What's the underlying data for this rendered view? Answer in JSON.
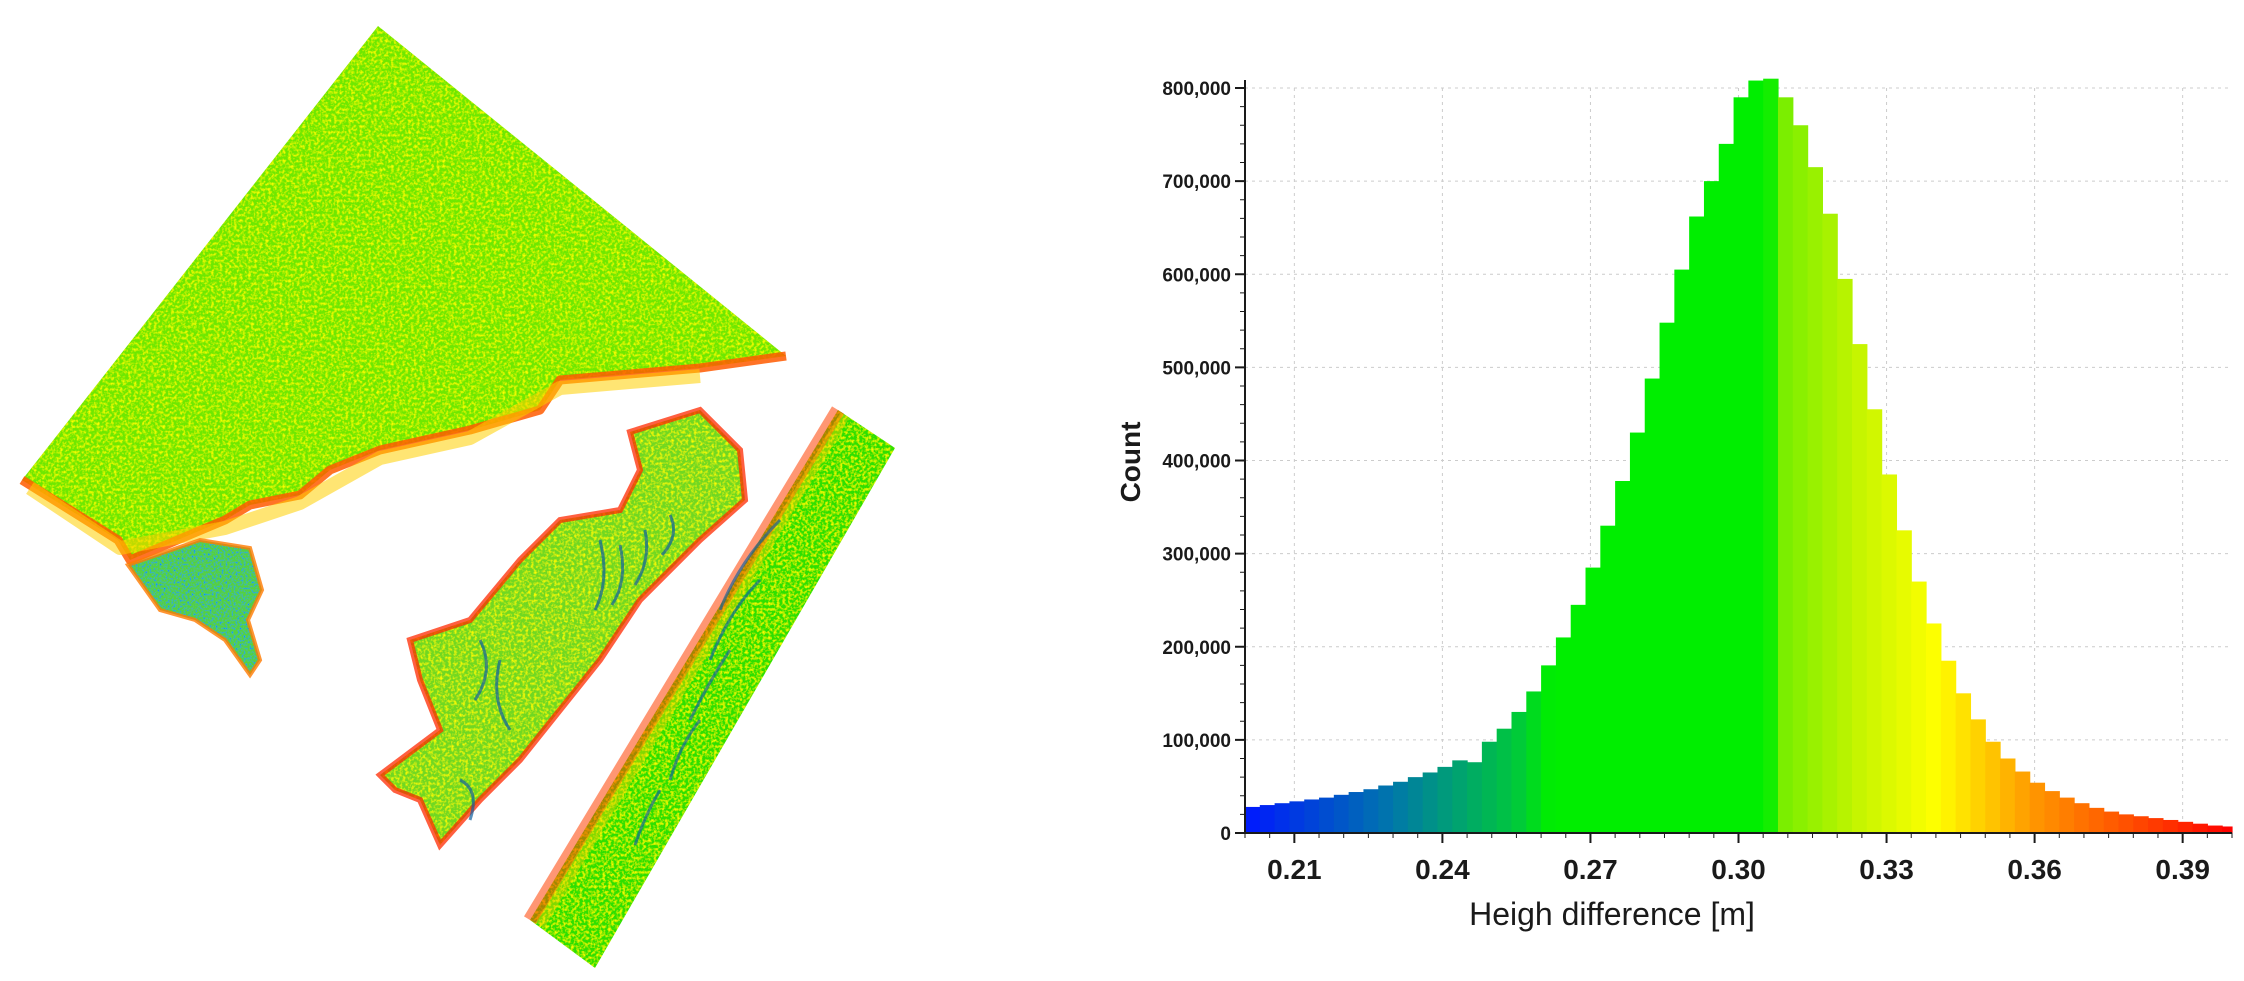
{
  "colors": {
    "low": "#0018ff",
    "teal": "#00a070",
    "mid": "#00ee00",
    "lime": "#88ee00",
    "yellow": "#ffff00",
    "orange": "#ff9900",
    "high": "#ff0000",
    "grid": "#cccccc",
    "axis": "#1a1a1a"
  },
  "chart_data": {
    "type": "bar",
    "title": "",
    "xlabel": "Heigh difference [m]",
    "ylabel": "Count",
    "xlim": [
      0.2,
      0.4
    ],
    "ylim": [
      0,
      800000
    ],
    "grid": true,
    "x_ticks": [
      {
        "value": 0.21,
        "label": "0.21"
      },
      {
        "value": 0.24,
        "label": "0.24"
      },
      {
        "value": 0.27,
        "label": "0.27"
      },
      {
        "value": 0.3,
        "label": "0.30"
      },
      {
        "value": 0.33,
        "label": "0.33"
      },
      {
        "value": 0.36,
        "label": "0.36"
      },
      {
        "value": 0.39,
        "label": "0.39"
      }
    ],
    "y_ticks": [
      {
        "value": 0,
        "label": "0"
      },
      {
        "value": 100000,
        "label": "100,000"
      },
      {
        "value": 200000,
        "label": "200,000"
      },
      {
        "value": 300000,
        "label": "300,000"
      },
      {
        "value": 400000,
        "label": "400,000"
      },
      {
        "value": 500000,
        "label": "500,000"
      },
      {
        "value": 600000,
        "label": "600,000"
      },
      {
        "value": 700000,
        "label": "700,000"
      },
      {
        "value": 800000,
        "label": "800,000"
      }
    ],
    "bin_width": 0.003,
    "bins_start": [
      0.2,
      0.203,
      0.206,
      0.209,
      0.212,
      0.215,
      0.218,
      0.221,
      0.224,
      0.227,
      0.23,
      0.233,
      0.236,
      0.239,
      0.242,
      0.245,
      0.248,
      0.251,
      0.254,
      0.257,
      0.26,
      0.263,
      0.266,
      0.269,
      0.272,
      0.275,
      0.278,
      0.281,
      0.284,
      0.287,
      0.29,
      0.293,
      0.296,
      0.299,
      0.302,
      0.305,
      0.308,
      0.311,
      0.314,
      0.317,
      0.32,
      0.323,
      0.326,
      0.329,
      0.332,
      0.335,
      0.338,
      0.341,
      0.344,
      0.347,
      0.35,
      0.353,
      0.356,
      0.359,
      0.362,
      0.365,
      0.368,
      0.371,
      0.374,
      0.377,
      0.38,
      0.383,
      0.386,
      0.389,
      0.392,
      0.395,
      0.398
    ],
    "values": [
      28000,
      30000,
      32000,
      34000,
      36000,
      38000,
      41000,
      44000,
      47000,
      51000,
      55000,
      60000,
      65000,
      71000,
      78000,
      76000,
      98000,
      112000,
      130000,
      152000,
      180000,
      210000,
      245000,
      285000,
      330000,
      378000,
      430000,
      488000,
      548000,
      605000,
      662000,
      700000,
      740000,
      790000,
      808000,
      810000,
      790000,
      760000,
      715000,
      665000,
      595000,
      525000,
      455000,
      385000,
      325000,
      270000,
      225000,
      185000,
      150000,
      122000,
      98000,
      80000,
      66000,
      54000,
      45000,
      38000,
      32000,
      27000,
      23000,
      20000,
      18000,
      16000,
      14000,
      12000,
      10000,
      8000,
      7000
    ]
  }
}
